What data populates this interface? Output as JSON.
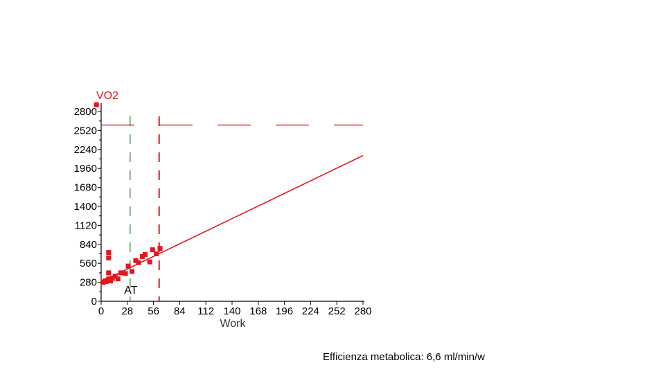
{
  "chart_data": {
    "type": "scatter",
    "ylabel": "VO2",
    "xlabel": "Work",
    "xlim": [
      0,
      280
    ],
    "ylim": [
      0,
      2800
    ],
    "x_ticks": [
      0,
      28,
      56,
      84,
      112,
      140,
      168,
      196,
      224,
      252,
      280
    ],
    "y_ticks": [
      0,
      280,
      560,
      840,
      1120,
      1400,
      1680,
      1960,
      2240,
      2520,
      2800
    ],
    "grid": false,
    "colors": {
      "points": "#e8141c",
      "fit_line": "#e8141c",
      "at_line": "#2e7d32",
      "ref_lines": "#e8141c"
    },
    "points": [
      {
        "x": -5,
        "y": 2900
      },
      {
        "x": 2,
        "y": 280
      },
      {
        "x": 4,
        "y": 300
      },
      {
        "x": 5,
        "y": 290
      },
      {
        "x": 7,
        "y": 310
      },
      {
        "x": 8,
        "y": 330
      },
      {
        "x": 8,
        "y": 420
      },
      {
        "x": 8,
        "y": 640
      },
      {
        "x": 8,
        "y": 720
      },
      {
        "x": 10,
        "y": 300
      },
      {
        "x": 12,
        "y": 340
      },
      {
        "x": 15,
        "y": 370
      },
      {
        "x": 18,
        "y": 330
      },
      {
        "x": 21,
        "y": 420
      },
      {
        "x": 26,
        "y": 410
      },
      {
        "x": 29,
        "y": 520
      },
      {
        "x": 33,
        "y": 440
      },
      {
        "x": 37,
        "y": 600
      },
      {
        "x": 40,
        "y": 570
      },
      {
        "x": 44,
        "y": 660
      },
      {
        "x": 47,
        "y": 690
      },
      {
        "x": 52,
        "y": 580
      },
      {
        "x": 55,
        "y": 760
      },
      {
        "x": 59,
        "y": 700
      },
      {
        "x": 63,
        "y": 780
      }
    ],
    "fit_line": {
      "from": [
        0,
        290
      ],
      "to": [
        280,
        2150
      ]
    },
    "threshold_lines": [
      {
        "label": "AT",
        "x": 31
      },
      {
        "label": "",
        "x": 62
      }
    ],
    "reference_line_y": 2600
  },
  "caption": "Efficienza metabolica: 6,6 ml/min/w"
}
